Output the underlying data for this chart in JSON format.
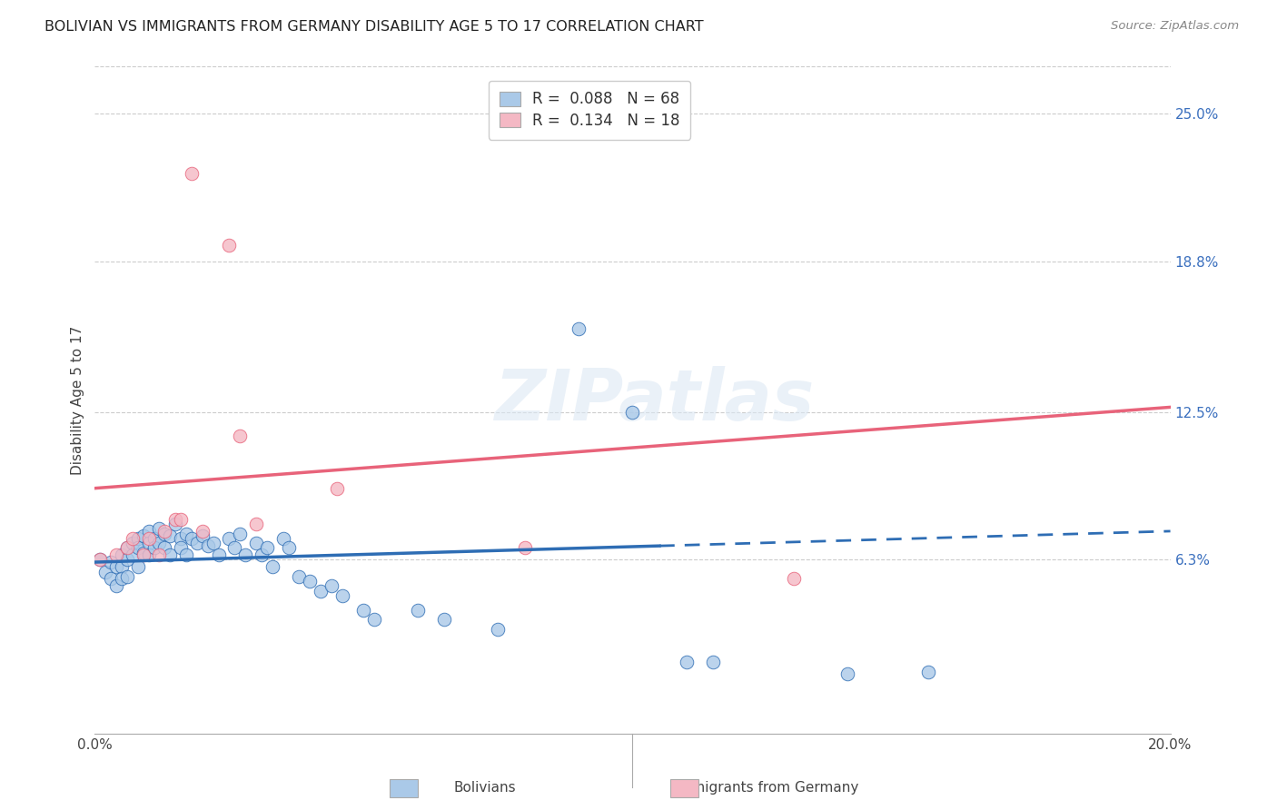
{
  "title": "BOLIVIAN VS IMMIGRANTS FROM GERMANY DISABILITY AGE 5 TO 17 CORRELATION CHART",
  "source": "Source: ZipAtlas.com",
  "ylabel": "Disability Age 5 to 17",
  "xlim": [
    0.0,
    0.2
  ],
  "ylim": [
    -0.01,
    0.27
  ],
  "ytick_labels_right": [
    "25.0%",
    "18.8%",
    "12.5%",
    "6.3%"
  ],
  "ytick_values_right": [
    0.25,
    0.188,
    0.125,
    0.063
  ],
  "color_blue": "#aac9e8",
  "color_pink": "#f4b8c4",
  "color_blue_line": "#2e6db4",
  "color_pink_line": "#e8637a",
  "blue_x": [
    0.001,
    0.002,
    0.003,
    0.003,
    0.004,
    0.004,
    0.005,
    0.005,
    0.005,
    0.006,
    0.006,
    0.006,
    0.007,
    0.007,
    0.008,
    0.008,
    0.008,
    0.009,
    0.009,
    0.01,
    0.01,
    0.01,
    0.011,
    0.011,
    0.012,
    0.012,
    0.013,
    0.013,
    0.014,
    0.014,
    0.015,
    0.016,
    0.016,
    0.017,
    0.017,
    0.018,
    0.019,
    0.02,
    0.021,
    0.022,
    0.023,
    0.025,
    0.026,
    0.027,
    0.028,
    0.03,
    0.031,
    0.032,
    0.033,
    0.035,
    0.036,
    0.038,
    0.04,
    0.042,
    0.044,
    0.046,
    0.05,
    0.052,
    0.06,
    0.065,
    0.075,
    0.09,
    0.1,
    0.11,
    0.115,
    0.14,
    0.155
  ],
  "blue_y": [
    0.063,
    0.058,
    0.062,
    0.055,
    0.06,
    0.052,
    0.065,
    0.06,
    0.055,
    0.068,
    0.063,
    0.056,
    0.07,
    0.065,
    0.072,
    0.068,
    0.06,
    0.073,
    0.066,
    0.075,
    0.07,
    0.065,
    0.072,
    0.068,
    0.076,
    0.07,
    0.074,
    0.068,
    0.073,
    0.065,
    0.078,
    0.072,
    0.068,
    0.074,
    0.065,
    0.072,
    0.07,
    0.073,
    0.069,
    0.07,
    0.065,
    0.072,
    0.068,
    0.074,
    0.065,
    0.07,
    0.065,
    0.068,
    0.06,
    0.072,
    0.068,
    0.056,
    0.054,
    0.05,
    0.052,
    0.048,
    0.042,
    0.038,
    0.042,
    0.038,
    0.034,
    0.16,
    0.125,
    0.02,
    0.02,
    0.015,
    0.016
  ],
  "pink_x": [
    0.001,
    0.004,
    0.006,
    0.007,
    0.009,
    0.01,
    0.012,
    0.013,
    0.015,
    0.016,
    0.018,
    0.02,
    0.025,
    0.027,
    0.03,
    0.045,
    0.08,
    0.13
  ],
  "pink_y": [
    0.063,
    0.065,
    0.068,
    0.072,
    0.065,
    0.072,
    0.065,
    0.075,
    0.08,
    0.08,
    0.225,
    0.075,
    0.195,
    0.115,
    0.078,
    0.093,
    0.068,
    0.055
  ],
  "blue_line_solid_end": 0.105,
  "blue_line_x0": 0.0,
  "blue_line_x1": 0.2,
  "blue_line_y0": 0.062,
  "blue_line_y1": 0.075,
  "pink_line_x0": 0.0,
  "pink_line_x1": 0.2,
  "pink_line_y0": 0.093,
  "pink_line_y1": 0.127
}
